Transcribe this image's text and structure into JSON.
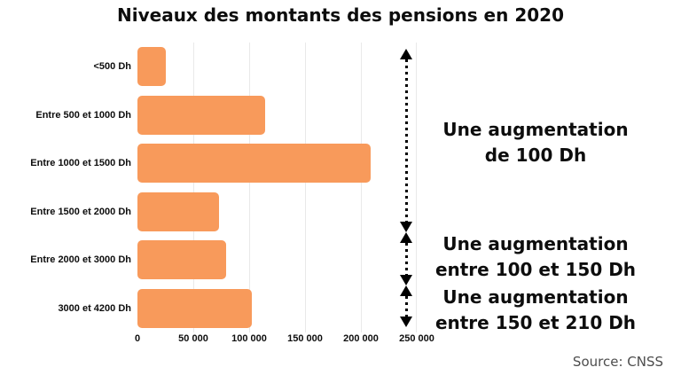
{
  "title": "Niveaux des montants des pensions en 2020",
  "source": "Source: CNSS",
  "colors": {
    "bar": "#F89A5B",
    "text": "#0d0d0d",
    "grid": "#e9e9e9",
    "arrow": "#000000",
    "source_text": "#4d4d4d"
  },
  "chart_data": {
    "type": "bar",
    "orientation": "horizontal",
    "title": "Niveaux des montants des pensions en 2020",
    "xlabel": "",
    "ylabel": "",
    "categories": [
      "<500 Dh",
      "Entre 500 et 1000 Dh",
      "Entre 1000 et 1500 Dh",
      "Entre 1500 et 2000 Dh",
      "Entre 2000 et 3000 Dh",
      "3000 et 4200 Dh"
    ],
    "values": [
      25000,
      114000,
      209000,
      73000,
      79000,
      102000
    ],
    "xlim": [
      0,
      250000
    ],
    "x_ticks": [
      "0",
      "50 000",
      "100 000",
      "150 000",
      "200 000",
      "250 000"
    ],
    "x_tick_values": [
      0,
      50000,
      100000,
      150000,
      200000,
      250000
    ],
    "grid": true,
    "legend": false
  },
  "annotations": [
    {
      "lines": [
        "Une augmentation",
        "de 100 Dh"
      ]
    },
    {
      "lines": [
        "Une augmentation",
        "entre 100 et 150 Dh"
      ]
    },
    {
      "lines": [
        "Une augmentation",
        "entre 150 et 210 Dh"
      ]
    }
  ]
}
